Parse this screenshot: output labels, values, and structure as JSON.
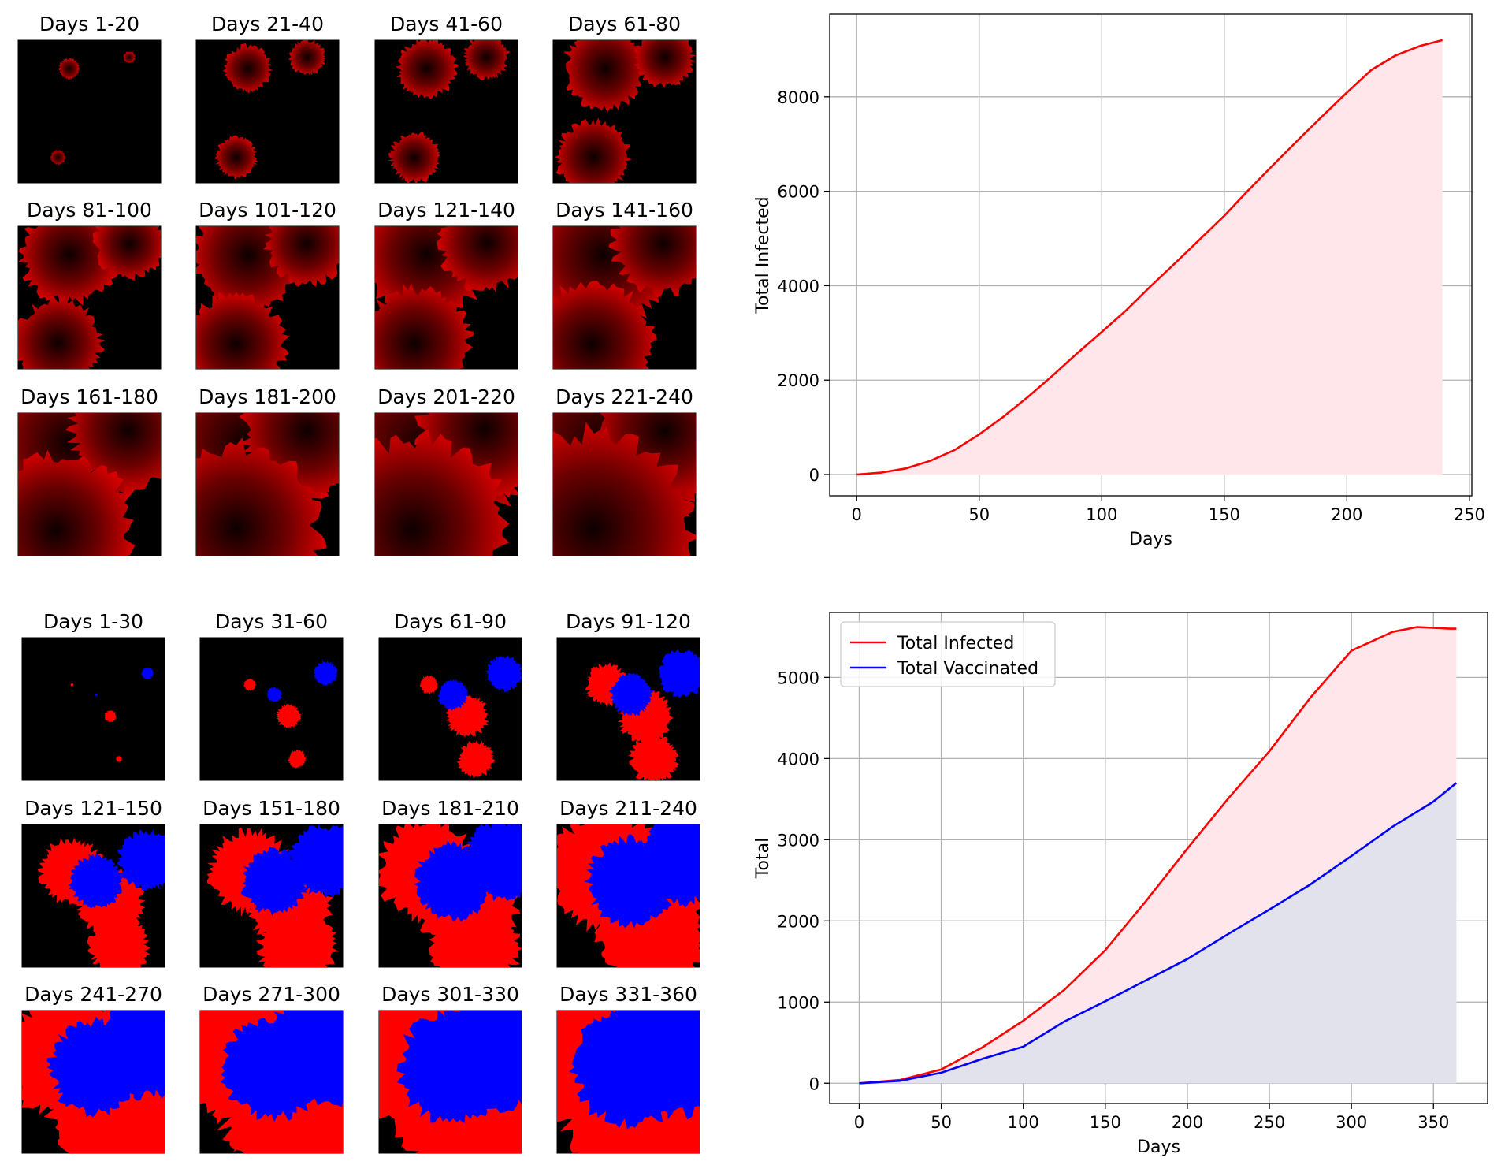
{
  "panel_a": {
    "titles": [
      "Days 1-20",
      "Days 21-40",
      "Days 41-60",
      "Days 61-80",
      "Days 81-100",
      "Days 101-120",
      "Days 121-140",
      "Days 141-160",
      "Days 161-180",
      "Days 181-200",
      "Days 201-220",
      "Days 221-240"
    ],
    "colors": {
      "infected": "#ff0000",
      "background": "#000000"
    },
    "seeds": [
      [
        0.36,
        0.2
      ],
      [
        0.78,
        0.12
      ],
      [
        0.28,
        0.82
      ]
    ],
    "radii": [
      [
        0.07,
        0.04,
        0.05
      ],
      [
        0.16,
        0.12,
        0.14
      ],
      [
        0.2,
        0.15,
        0.17
      ],
      [
        0.28,
        0.2,
        0.25
      ],
      [
        0.33,
        0.24,
        0.3
      ],
      [
        0.38,
        0.28,
        0.34
      ],
      [
        0.43,
        0.32,
        0.38
      ],
      [
        0.48,
        0.35,
        0.42
      ],
      [
        0.56,
        0.4,
        0.52
      ],
      [
        0.62,
        0.44,
        0.58
      ],
      [
        0.68,
        0.46,
        0.64
      ],
      [
        0.72,
        0.48,
        0.68
      ]
    ]
  },
  "panel_b": {
    "titles": [
      "Days 1-30",
      "Days 31-60",
      "Days 61-90",
      "Days 91-120",
      "Days 121-150",
      "Days 151-180",
      "Days 181-210",
      "Days 211-240",
      "Days 241-270",
      "Days 271-300",
      "Days 301-330",
      "Days 331-360"
    ],
    "colors": {
      "infected": "#ff0000",
      "vaccinated": "#0000ff",
      "background": "#000000"
    }
  },
  "chart_data": [
    {
      "type": "area",
      "title": "",
      "xlabel": "Days",
      "ylabel": "Total Infected",
      "xlim": [
        -11,
        251
      ],
      "ylim": [
        -450,
        9750
      ],
      "xticks": [
        0,
        50,
        100,
        150,
        200,
        250
      ],
      "yticks": [
        0,
        2000,
        4000,
        6000,
        8000
      ],
      "grid": true,
      "series": [
        {
          "color": "#ff0000",
          "fill": "#ffe6ea",
          "x": [
            0,
            10,
            20,
            30,
            40,
            50,
            60,
            70,
            80,
            90,
            100,
            110,
            120,
            130,
            140,
            150,
            160,
            170,
            180,
            190,
            200,
            210,
            220,
            230,
            239
          ],
          "y": [
            0,
            40,
            130,
            290,
            520,
            850,
            1230,
            1650,
            2100,
            2570,
            3020,
            3480,
            3990,
            4480,
            4980,
            5480,
            6030,
            6560,
            7080,
            7590,
            8090,
            8570,
            8880,
            9080,
            9200
          ]
        }
      ]
    },
    {
      "type": "area",
      "title": "",
      "xlabel": "Days",
      "ylabel": "Total",
      "xlim": [
        -18,
        383
      ],
      "ylim": [
        -250,
        5800
      ],
      "xticks": [
        0,
        50,
        100,
        150,
        200,
        250,
        300,
        350
      ],
      "yticks": [
        0,
        1000,
        2000,
        3000,
        4000,
        5000
      ],
      "grid": true,
      "legend": "top-left",
      "series": [
        {
          "name": "Total Infected",
          "color": "#ff0000",
          "fill": "#ffe6ea",
          "x": [
            0,
            25,
            50,
            75,
            100,
            125,
            150,
            175,
            200,
            225,
            250,
            275,
            300,
            325,
            340,
            360,
            364
          ],
          "y": [
            0,
            40,
            170,
            440,
            770,
            1150,
            1640,
            2250,
            2890,
            3510,
            4090,
            4750,
            5330,
            5560,
            5620,
            5600,
            5600
          ]
        },
        {
          "name": "Total Vaccinated",
          "color": "#0000ff",
          "fill": "#e2e2ec",
          "x": [
            0,
            25,
            50,
            75,
            100,
            125,
            150,
            175,
            200,
            225,
            250,
            275,
            300,
            325,
            350,
            364
          ],
          "y": [
            0,
            30,
            130,
            300,
            450,
            760,
            1010,
            1270,
            1530,
            1840,
            2140,
            2450,
            2800,
            3160,
            3470,
            3700
          ]
        }
      ]
    }
  ]
}
